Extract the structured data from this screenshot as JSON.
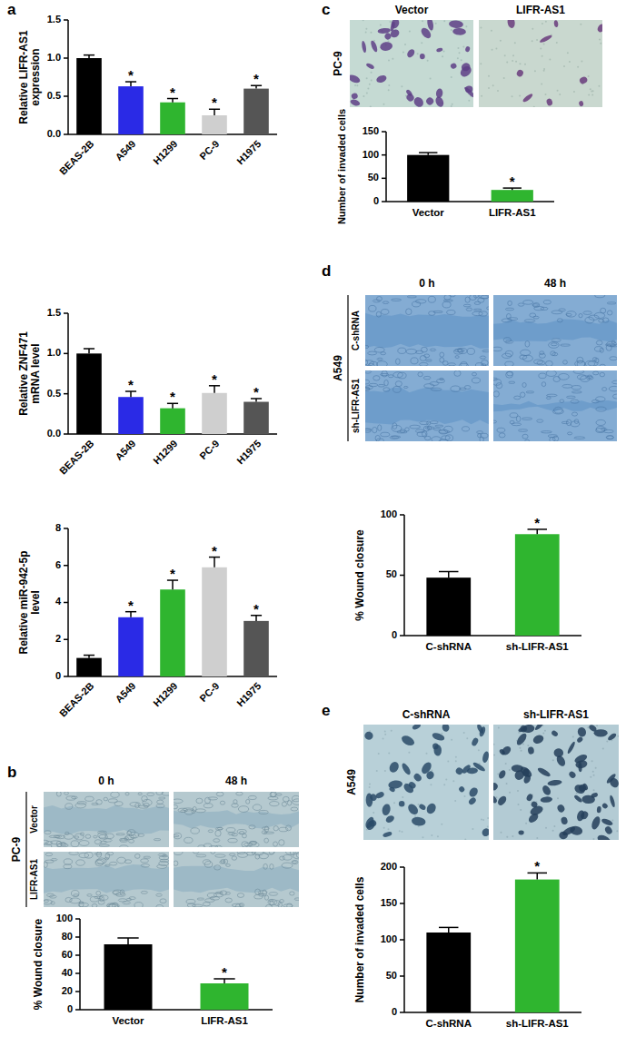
{
  "figure": {
    "panel_labels": [
      "a",
      "b",
      "c",
      "d",
      "e"
    ],
    "images": [
      {
        "cell_line": "PC-9",
        "columns": [
          "0 h",
          "48 h"
        ],
        "rows": [
          "Vector",
          "LIFR-AS1"
        ]
      },
      {
        "cell_line": "PC-9",
        "columns": [
          "Vector",
          "LIFR-AS1"
        ]
      },
      {
        "cell_line": "A549",
        "columns": [
          "0 h",
          "48 h"
        ],
        "rows": [
          "C-shRNA",
          "sh-LIFR-AS1"
        ]
      },
      {
        "cell_line": "A549",
        "columns": [
          "C-shRNA",
          "sh-LIFR-AS1"
        ]
      }
    ]
  },
  "chart_data": [
    {
      "type": "bar",
      "y_label": "Relative LIFR-AS1\nexpression",
      "categories": [
        "BEAS-2B",
        "A549",
        "H1299",
        "PC-9",
        "H1975"
      ],
      "values": [
        1.0,
        0.63,
        0.42,
        0.25,
        0.6
      ],
      "errors": [
        0.04,
        0.06,
        0.05,
        0.08,
        0.04
      ],
      "significance": [
        null,
        "*",
        "*",
        "*",
        "*"
      ],
      "colors": [
        "#000000",
        "#2a2ae6",
        "#2fb52f",
        "#cfcfcf",
        "#555555"
      ],
      "ylim": [
        0,
        1.5
      ],
      "yticks": [
        {
          "value": 0,
          "label": "0.0"
        },
        0.5,
        {
          "value": 1,
          "label": "1.0"
        },
        1.5
      ]
    },
    {
      "type": "bar",
      "y_label": "Relative ZNF471\nmRNA level",
      "categories": [
        "BEAS-2B",
        "A549",
        "H1299",
        "PC-9",
        "H1975"
      ],
      "values": [
        1.0,
        0.46,
        0.32,
        0.51,
        0.4
      ],
      "errors": [
        0.06,
        0.07,
        0.06,
        0.09,
        0.04
      ],
      "significance": [
        null,
        "*",
        "*",
        "*",
        "*"
      ],
      "colors": [
        "#000000",
        "#2a2ae6",
        "#2fb52f",
        "#cfcfcf",
        "#555555"
      ],
      "ylim": [
        0,
        1.5
      ],
      "yticks": [
        {
          "value": 0,
          "label": "0.0"
        },
        0.5,
        {
          "value": 1,
          "label": "1.0"
        },
        1.5
      ]
    },
    {
      "type": "bar",
      "y_label": "Relative miR-942-5p\nlevel",
      "categories": [
        "BEAS-2B",
        "A549",
        "H1299",
        "PC-9",
        "H1975"
      ],
      "values": [
        1.0,
        3.2,
        4.7,
        5.9,
        3.0
      ],
      "errors": [
        0.15,
        0.3,
        0.5,
        0.55,
        0.3
      ],
      "significance": [
        null,
        "*",
        "*",
        "*",
        "*"
      ],
      "colors": [
        "#000000",
        "#2a2ae6",
        "#2fb52f",
        "#cfcfcf",
        "#555555"
      ],
      "ylim": [
        0,
        8
      ],
      "yticks": [
        0,
        2,
        4,
        6,
        8
      ]
    },
    {
      "type": "bar",
      "y_label": "% Wound closure",
      "categories": [
        "Vector",
        "LIFR-AS1"
      ],
      "values": [
        72,
        29
      ],
      "errors": [
        7,
        5
      ],
      "significance": [
        null,
        "*"
      ],
      "colors": [
        "#000000",
        "#2fb52f"
      ],
      "ylim": [
        0,
        100
      ],
      "yticks": [
        0,
        20,
        40,
        60,
        80,
        100
      ]
    },
    {
      "type": "bar",
      "y_label": "Number of invaded cells",
      "categories": [
        "Vector",
        "LIFR-AS1"
      ],
      "values": [
        100,
        25
      ],
      "errors": [
        5,
        4
      ],
      "significance": [
        null,
        "*"
      ],
      "colors": [
        "#000000",
        "#2fb52f"
      ],
      "ylim": [
        0,
        150
      ],
      "yticks": [
        0,
        50,
        100,
        150
      ]
    },
    {
      "type": "bar",
      "y_label": "% Wound closure",
      "categories": [
        "C-shRNA",
        "sh-LIFR-AS1"
      ],
      "values": [
        48,
        84
      ],
      "errors": [
        5,
        4
      ],
      "significance": [
        null,
        "*"
      ],
      "colors": [
        "#000000",
        "#2fb52f"
      ],
      "ylim": [
        0,
        100
      ],
      "yticks": [
        0,
        50,
        100
      ]
    },
    {
      "type": "bar",
      "y_label": "Number of invaded cells",
      "categories": [
        "C-shRNA",
        "sh-LIFR-AS1"
      ],
      "values": [
        110,
        183
      ],
      "errors": [
        7,
        9
      ],
      "significance": [
        null,
        "*"
      ],
      "colors": [
        "#000000",
        "#2fb52f"
      ],
      "ylim": [
        0,
        200
      ],
      "yticks": [
        0,
        50,
        100,
        150,
        200
      ]
    }
  ]
}
